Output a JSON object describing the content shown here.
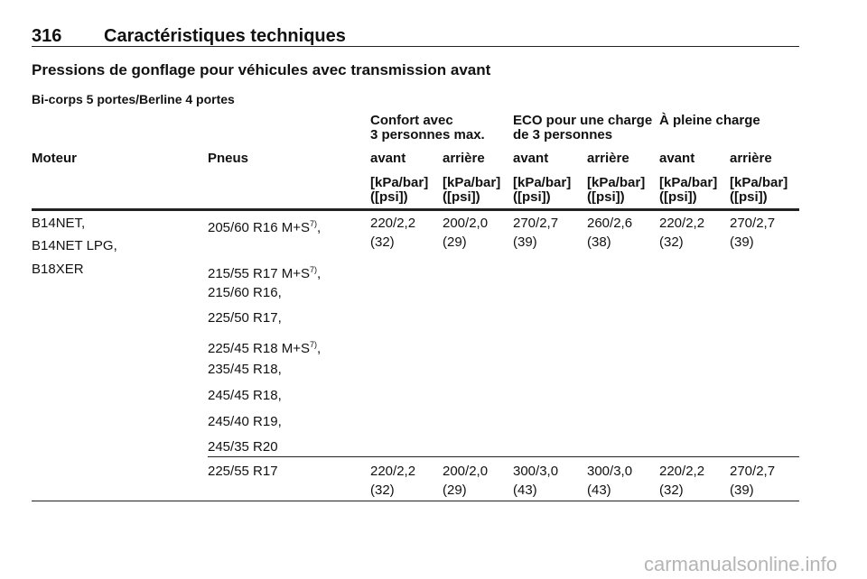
{
  "header": {
    "page": "316",
    "title": "Caractéristiques techniques"
  },
  "subtitle": "Pressions de gonflage pour véhicules avec transmission avant",
  "section": "Bi-corps 5 portes/Berline 4 portes",
  "table": {
    "groups": [
      [
        "Confort avec",
        "3 personnes max."
      ],
      [
        "ECO pour une charge",
        "de 3 personnes"
      ],
      [
        "À pleine charge"
      ]
    ],
    "columns": [
      "Moteur",
      "Pneus",
      "avant",
      "arrière",
      "avant",
      "arrière",
      "avant",
      "arrière"
    ],
    "units": [
      [
        "[kPa/bar]",
        "([psi])"
      ],
      [
        "[kPa/bar]",
        "([psi])"
      ],
      [
        "[kPa/bar]",
        "([psi])"
      ],
      [
        "[kPa/bar]",
        "([psi])"
      ],
      [
        "[kPa/bar]",
        "([psi])"
      ],
      [
        "[kPa/bar]",
        "([psi])"
      ]
    ],
    "rows": [
      {
        "engines": [
          "B14NET,",
          "B14NET LPG,",
          "B18XER"
        ],
        "tires": [
          {
            "text": "205/60 R16 M+S",
            "sup": "7)",
            "after": ","
          },
          {
            "text": "215/55 R17 M+S",
            "sup": "7)",
            "after": ","
          },
          "215/60 R16,",
          "225/50 R17,",
          {
            "text": "225/45 R18 M+S",
            "sup": "7)",
            "after": ","
          },
          "235/45 R18,",
          "245/45 R18,",
          "245/40 R19,",
          "245/35 R20"
        ],
        "values": [
          [
            "220/2,2",
            "(32)"
          ],
          [
            "200/2,0",
            "(29)"
          ],
          [
            "270/2,7",
            "(39)"
          ],
          [
            "260/2,6",
            "(38)"
          ],
          [
            "220/2,2",
            "(32)"
          ],
          [
            "270/2,7",
            "(39)"
          ]
        ]
      },
      {
        "engines": [],
        "tires": [
          "225/55 R17"
        ],
        "values": [
          [
            "220/2,2",
            "(32)"
          ],
          [
            "200/2,0",
            "(29)"
          ],
          [
            "300/3,0",
            "(43)"
          ],
          [
            "300/3,0",
            "(43)"
          ],
          [
            "220/2,2",
            "(32)"
          ],
          [
            "270/2,7",
            "(39)"
          ]
        ]
      }
    ]
  },
  "watermark": "carmanualsonline.info"
}
